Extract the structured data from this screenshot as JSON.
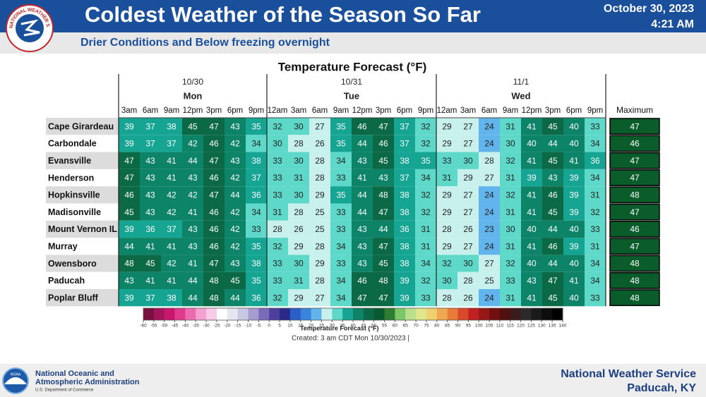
{
  "header": {
    "title": "Coldest Weather of the Season So Far",
    "date": "October 30, 2023",
    "time": "4:21 AM",
    "subtitle": "Drier Conditions and Below freezing overnight",
    "logo_text": "NATIONAL WEATHER SERVICE"
  },
  "table": {
    "title": "Temperature Forecast (°F)",
    "days": [
      {
        "date": "10/30",
        "name": "Mon",
        "hours": [
          "3am",
          "6am",
          "9am",
          "12pm",
          "3pm",
          "6pm",
          "9pm"
        ]
      },
      {
        "date": "10/31",
        "name": "Tue",
        "hours": [
          "12am",
          "3am",
          "6am",
          "9am",
          "12pm",
          "3pm",
          "6pm",
          "9pm"
        ]
      },
      {
        "date": "11/1",
        "name": "Wed",
        "hours": [
          "12am",
          "3am",
          "6am",
          "9am",
          "12pm",
          "3pm",
          "6pm",
          "9pm"
        ]
      }
    ],
    "max_label": "Maximum",
    "rows": [
      {
        "name": "Cape Girardeau",
        "values": [
          39,
          37,
          38,
          45,
          47,
          43,
          35,
          32,
          30,
          27,
          35,
          46,
          47,
          37,
          32,
          29,
          27,
          24,
          31,
          41,
          45,
          40,
          33
        ],
        "max": 47
      },
      {
        "name": "Carbondale",
        "values": [
          39,
          37,
          37,
          42,
          46,
          42,
          34,
          30,
          28,
          26,
          35,
          44,
          46,
          37,
          32,
          29,
          27,
          24,
          30,
          40,
          44,
          40,
          34
        ],
        "max": 46
      },
      {
        "name": "Evansville",
        "values": [
          47,
          43,
          41,
          44,
          47,
          43,
          38,
          33,
          30,
          28,
          34,
          43,
          45,
          38,
          35,
          33,
          30,
          28,
          32,
          41,
          45,
          41,
          36
        ],
        "max": 47
      },
      {
        "name": "Henderson",
        "values": [
          47,
          43,
          41,
          43,
          46,
          42,
          37,
          33,
          31,
          28,
          33,
          41,
          43,
          37,
          34,
          31,
          29,
          27,
          31,
          39,
          43,
          39,
          34
        ],
        "max": 47
      },
      {
        "name": "Hopkinsville",
        "values": [
          46,
          43,
          42,
          42,
          47,
          44,
          36,
          33,
          30,
          29,
          35,
          44,
          48,
          38,
          32,
          29,
          27,
          24,
          32,
          41,
          46,
          39,
          31
        ],
        "max": 48
      },
      {
        "name": "Madisonville",
        "values": [
          45,
          43,
          42,
          41,
          46,
          42,
          34,
          31,
          28,
          25,
          33,
          44,
          47,
          38,
          32,
          29,
          27,
          24,
          31,
          41,
          45,
          39,
          32
        ],
        "max": 47
      },
      {
        "name": "Mount Vernon IL",
        "values": [
          39,
          36,
          37,
          43,
          46,
          42,
          33,
          28,
          26,
          25,
          33,
          43,
          44,
          36,
          31,
          28,
          26,
          23,
          30,
          40,
          44,
          40,
          33
        ],
        "max": 46
      },
      {
        "name": "Murray",
        "values": [
          44,
          41,
          41,
          43,
          46,
          42,
          35,
          32,
          29,
          28,
          34,
          43,
          47,
          38,
          31,
          29,
          27,
          24,
          31,
          41,
          46,
          39,
          31
        ],
        "max": 47
      },
      {
        "name": "Owensboro",
        "values": [
          48,
          45,
          42,
          41,
          47,
          43,
          38,
          33,
          30,
          29,
          33,
          43,
          45,
          38,
          34,
          32,
          30,
          27,
          32,
          40,
          44,
          40,
          34
        ],
        "max": 48
      },
      {
        "name": "Paducah",
        "values": [
          43,
          41,
          41,
          44,
          48,
          45,
          35,
          33,
          31,
          28,
          34,
          46,
          48,
          39,
          32,
          30,
          28,
          25,
          33,
          43,
          47,
          41,
          34
        ],
        "max": 48
      },
      {
        "name": "Poplar Bluff",
        "values": [
          39,
          37,
          38,
          44,
          48,
          44,
          36,
          32,
          29,
          27,
          34,
          47,
          47,
          39,
          33,
          28,
          26,
          24,
          31,
          41,
          45,
          40,
          33
        ],
        "max": 48
      }
    ]
  },
  "legend": {
    "label": "Temperature Forecast (°F)",
    "created": "Created: 3 am CDT Mon 10/30/2023  |",
    "ticks": [
      -60,
      -55,
      -50,
      -45,
      -40,
      -35,
      -30,
      -25,
      -20,
      -15,
      -10,
      -5,
      0,
      5,
      10,
      15,
      20,
      25,
      30,
      35,
      40,
      45,
      50,
      55,
      60,
      65,
      70,
      75,
      80,
      85,
      90,
      95,
      100,
      105,
      110,
      115,
      120,
      125,
      130,
      135,
      140
    ],
    "colors": [
      "#7a1040",
      "#a3145a",
      "#c8186e",
      "#e03a8e",
      "#ee6ab0",
      "#f5a0d0",
      "#f8cce8",
      "#ffffff",
      "#e6e6f2",
      "#c8c8e4",
      "#a59ccf",
      "#7a6bb8",
      "#4f3f9c",
      "#2a2a8a",
      "#2a5fc8",
      "#3a85dc",
      "#62b4ec",
      "#c8f0ec",
      "#5ed8c8",
      "#17a593",
      "#0d8468",
      "#0b6a45",
      "#0a5a30",
      "#2e7d32",
      "#7cc66a",
      "#b9e08a",
      "#e0e68a",
      "#f0d070",
      "#f0a850",
      "#e87a3a",
      "#d84a2a",
      "#c02020",
      "#981818",
      "#701010",
      "#501010",
      "#3a1a1a",
      "#2a2a2a",
      "#1a1a1a",
      "#0d0d0d",
      "#000000"
    ]
  },
  "footer": {
    "noaa": "NOAA",
    "org_line1": "National Oceanic and",
    "org_line2": "Atmospheric Administration",
    "dept": "U.S. Department of Commerce",
    "nws": "National Weather Service",
    "office": "Paducah, KY"
  }
}
